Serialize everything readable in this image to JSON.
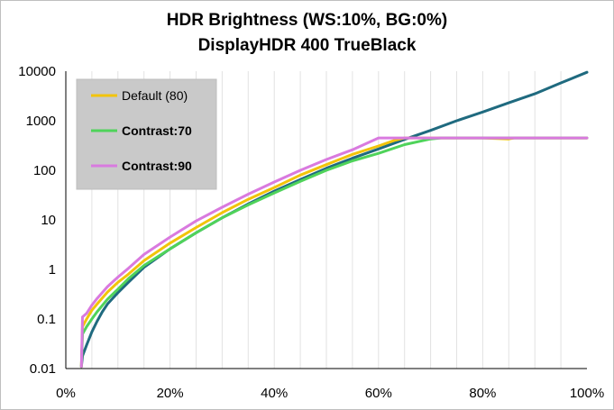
{
  "chart_data": {
    "type": "line",
    "title": "HDR Brightness (WS:10%, BG:0%)",
    "subtitle": "DisplayHDR 400 TrueBlack",
    "xlabel": "",
    "ylabel": "",
    "x_ticks": [
      "0%",
      "20%",
      "40%",
      "60%",
      "80%",
      "100%"
    ],
    "y_ticks": [
      "0.01",
      "0.1",
      "1",
      "10",
      "100",
      "1000",
      "10000"
    ],
    "x_range": [
      0,
      100
    ],
    "y_range": [
      0.01,
      10000
    ],
    "y_scale": "log",
    "grid": "vertical-minor",
    "legend_position": "top-left",
    "colors": {
      "reference": "#1f6a7f",
      "default": "#f2c40a",
      "contrast70": "#4fd35a",
      "contrast90": "#d97adf"
    },
    "series": [
      {
        "name": "",
        "color_key": "reference",
        "points": [
          [
            3,
            0.011
          ],
          [
            3.2,
            0.018
          ],
          [
            4,
            0.03
          ],
          [
            5,
            0.055
          ],
          [
            6,
            0.09
          ],
          [
            7,
            0.14
          ],
          [
            8,
            0.2
          ],
          [
            10,
            0.34
          ],
          [
            12,
            0.55
          ],
          [
            15,
            1.1
          ],
          [
            20,
            2.6
          ],
          [
            25,
            5.5
          ],
          [
            30,
            11
          ],
          [
            35,
            21
          ],
          [
            40,
            38
          ],
          [
            45,
            65
          ],
          [
            50,
            110
          ],
          [
            55,
            175
          ],
          [
            60,
            270
          ],
          [
            65,
            420
          ],
          [
            70,
            640
          ],
          [
            75,
            1000
          ],
          [
            80,
            1500
          ],
          [
            85,
            2300
          ],
          [
            90,
            3500
          ],
          [
            95,
            5800
          ],
          [
            100,
            9500
          ]
        ]
      },
      {
        "name": "Default (80)",
        "color_key": "default",
        "points": [
          [
            3,
            0.011
          ],
          [
            3.2,
            0.07
          ],
          [
            4,
            0.1
          ],
          [
            5,
            0.15
          ],
          [
            6,
            0.2
          ],
          [
            8,
            0.35
          ],
          [
            10,
            0.55
          ],
          [
            12,
            0.8
          ],
          [
            15,
            1.5
          ],
          [
            20,
            3.4
          ],
          [
            25,
            7
          ],
          [
            30,
            14
          ],
          [
            35,
            26
          ],
          [
            40,
            45
          ],
          [
            45,
            80
          ],
          [
            50,
            130
          ],
          [
            55,
            210
          ],
          [
            60,
            310
          ],
          [
            63,
            400
          ],
          [
            65,
            450
          ],
          [
            70,
            450
          ],
          [
            80,
            450
          ],
          [
            85,
            430
          ],
          [
            86,
            450
          ],
          [
            90,
            450
          ],
          [
            100,
            450
          ]
        ]
      },
      {
        "name": "Contrast:70",
        "color_key": "contrast70",
        "points": [
          [
            3,
            0.011
          ],
          [
            3.2,
            0.05
          ],
          [
            4,
            0.07
          ],
          [
            5,
            0.1
          ],
          [
            6,
            0.14
          ],
          [
            8,
            0.25
          ],
          [
            10,
            0.4
          ],
          [
            12,
            0.65
          ],
          [
            15,
            1.2
          ],
          [
            20,
            2.6
          ],
          [
            25,
            5.5
          ],
          [
            30,
            11
          ],
          [
            35,
            20
          ],
          [
            40,
            35
          ],
          [
            45,
            60
          ],
          [
            50,
            100
          ],
          [
            55,
            155
          ],
          [
            60,
            220
          ],
          [
            65,
            330
          ],
          [
            70,
            430
          ],
          [
            72,
            450
          ],
          [
            80,
            450
          ],
          [
            90,
            450
          ],
          [
            100,
            450
          ]
        ]
      },
      {
        "name": "Contrast:90",
        "color_key": "contrast90",
        "points": [
          [
            3,
            0.011
          ],
          [
            3.2,
            0.11
          ],
          [
            4,
            0.13
          ],
          [
            5,
            0.19
          ],
          [
            6,
            0.26
          ],
          [
            8,
            0.45
          ],
          [
            10,
            0.7
          ],
          [
            12,
            1.05
          ],
          [
            15,
            2
          ],
          [
            20,
            4.5
          ],
          [
            25,
            9.5
          ],
          [
            30,
            18
          ],
          [
            35,
            33
          ],
          [
            40,
            58
          ],
          [
            45,
            100
          ],
          [
            50,
            165
          ],
          [
            55,
            260
          ],
          [
            60,
            450
          ],
          [
            62,
            450
          ],
          [
            70,
            450
          ],
          [
            80,
            450
          ],
          [
            90,
            450
          ],
          [
            100,
            450
          ]
        ]
      }
    ]
  }
}
